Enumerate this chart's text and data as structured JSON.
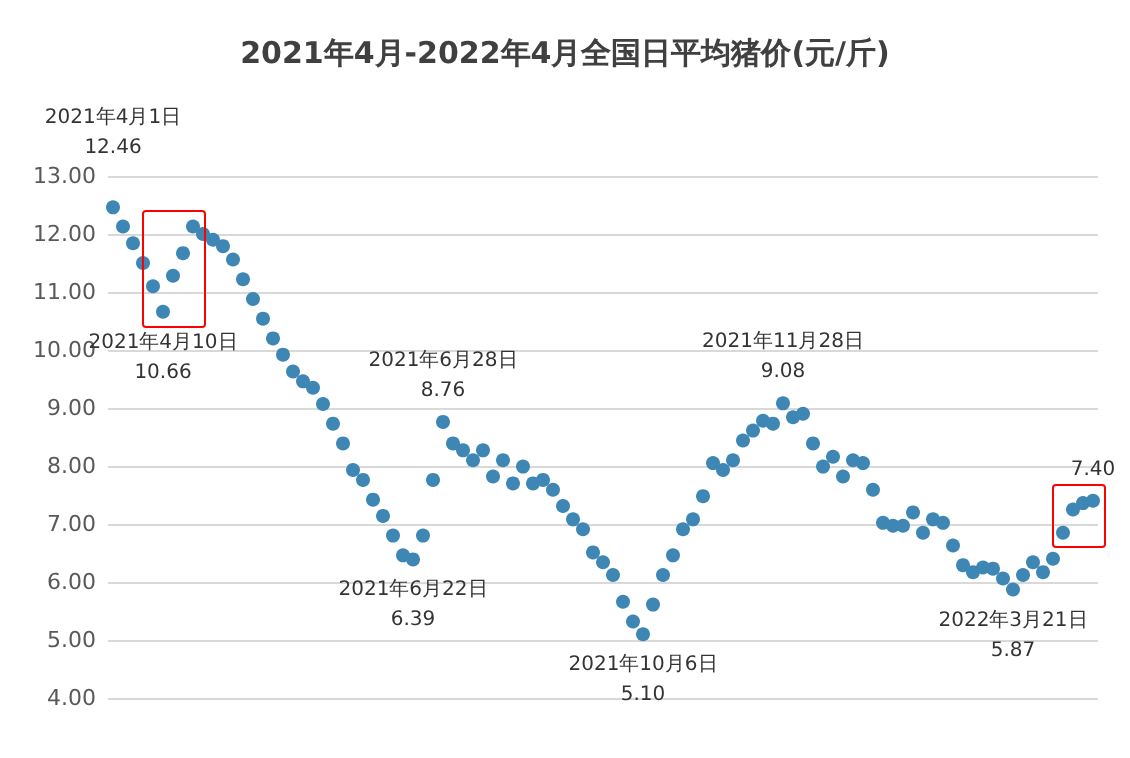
{
  "chart_data": {
    "type": "scatter",
    "title": "2021年4月-2022年4月全国日平均猪价(元/斤)",
    "categories": [
      null,
      null,
      null,
      null,
      null,
      null,
      null,
      null,
      null,
      null,
      null,
      null,
      null,
      null,
      null,
      null,
      null,
      null,
      null,
      null,
      null,
      null,
      null,
      null,
      null,
      null,
      null,
      null,
      null,
      null,
      null,
      null,
      null,
      null,
      null,
      null,
      null,
      null,
      null,
      null,
      null,
      null,
      null,
      null,
      null,
      null,
      null,
      null,
      null,
      null,
      null,
      null,
      null,
      null,
      null,
      null,
      null,
      null,
      null,
      null,
      null,
      null,
      null,
      null,
      null,
      null,
      null,
      null,
      null,
      null,
      null,
      null,
      null,
      null,
      null,
      null,
      null,
      null,
      null,
      null,
      null,
      null,
      null,
      null,
      null,
      null,
      null,
      null,
      null,
      null,
      null,
      null,
      null,
      null,
      null,
      null,
      null,
      null,
      null
    ],
    "series": [
      {
        "color": "#3e87b5",
        "values": [
          12.46,
          12.13,
          11.84,
          11.5,
          11.1,
          10.66,
          11.28,
          11.67,
          12.13,
          12.0,
          11.9,
          11.79,
          11.56,
          11.22,
          10.88,
          10.54,
          10.2,
          9.92,
          9.63,
          9.46,
          9.35,
          9.07,
          8.73,
          8.39,
          7.93,
          7.76,
          7.42,
          7.14,
          6.8,
          6.46,
          6.39,
          6.8,
          7.76,
          8.76,
          8.39,
          8.27,
          8.1,
          8.27,
          7.82,
          8.1,
          7.7,
          7.99,
          7.7,
          7.76,
          7.59,
          7.31,
          7.08,
          6.91,
          6.51,
          6.34,
          6.12,
          5.66,
          5.32,
          5.1,
          5.61,
          6.12,
          6.46,
          6.91,
          7.08,
          7.48,
          8.05,
          7.93,
          8.1,
          8.44,
          8.61,
          8.78,
          8.73,
          9.08,
          8.84,
          8.9,
          8.39,
          7.99,
          8.16,
          7.82,
          8.1,
          8.05,
          7.59,
          7.02,
          6.97,
          6.97,
          7.2,
          6.85,
          7.08,
          7.02,
          6.63,
          6.29,
          6.17,
          6.25,
          6.23,
          6.06,
          5.87,
          6.12,
          6.34,
          6.17,
          6.4,
          6.85,
          7.25,
          7.36,
          7.4
        ]
      }
    ],
    "ylim": [
      4,
      13
    ],
    "yticks": [
      {
        "value": 4,
        "label": "4.00"
      },
      {
        "value": 5,
        "label": "5.00"
      },
      {
        "value": 6,
        "label": "6.00"
      },
      {
        "value": 7,
        "label": "7.00"
      },
      {
        "value": 8,
        "label": "8.00"
      },
      {
        "value": 9,
        "label": "9.00"
      },
      {
        "value": 10,
        "label": "10.00"
      },
      {
        "value": 11,
        "label": "11.00"
      },
      {
        "value": 12,
        "label": "12.00"
      },
      {
        "value": 13,
        "label": "13.00"
      }
    ],
    "tick_labels": "y",
    "grid": "y",
    "marker": "circle",
    "annotations": [
      {
        "text": "2021年4月1日\n12.46",
        "y": 12.46
      },
      {
        "text": "2021年4月10日\n10.66",
        "y": 10.66
      },
      {
        "text": "2021年6月22日\n6.39",
        "y": 6.39
      },
      {
        "text": "2021年6月28日\n8.76",
        "y": 8.76
      },
      {
        "text": "2021年10月6日\n5.10",
        "y": 5.1
      },
      {
        "text": "2021年11月28日\n9.08",
        "y": 9.08
      },
      {
        "text": "2022年3月21日\n5.87",
        "y": 5.87
      },
      {
        "text": "7.40",
        "y": 7.4
      }
    ]
  }
}
